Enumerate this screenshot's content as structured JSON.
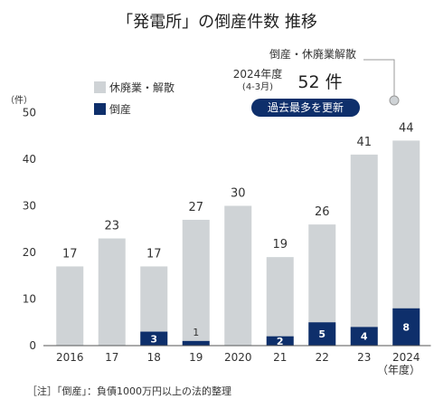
{
  "title": "「発電所」の倒産件数  推移",
  "y_unit": "（件）",
  "x_unit": "（年度）",
  "note": "［注］「倒産」：負債1000万円以上の法的整理",
  "legend": {
    "light": "休廃業・解散",
    "dark": "倒産"
  },
  "callout": {
    "label": "倒産・休廃業解散",
    "period_line1": "2024年度",
    "period_line2": "(4-3月)",
    "count": "52 件",
    "badge": "過去最多を更新"
  },
  "colors": {
    "light": "#cfd3d6",
    "dark": "#0e2f6b",
    "axis": "#555555"
  },
  "chart_data": {
    "type": "bar",
    "title": "「発電所」の倒産件数  推移",
    "categories": [
      "2016",
      "17",
      "18",
      "19",
      "2020",
      "21",
      "22",
      "23",
      "2024"
    ],
    "series": [
      {
        "name": "休廃業・解散",
        "values": [
          17,
          23,
          17,
          27,
          30,
          19,
          26,
          41,
          44
        ]
      },
      {
        "name": "倒産",
        "values": [
          0,
          0,
          3,
          1,
          0,
          2,
          5,
          4,
          8
        ]
      }
    ],
    "yticks": [
      0,
      10,
      20,
      30,
      40,
      50
    ],
    "ylim": [
      0,
      50
    ]
  }
}
